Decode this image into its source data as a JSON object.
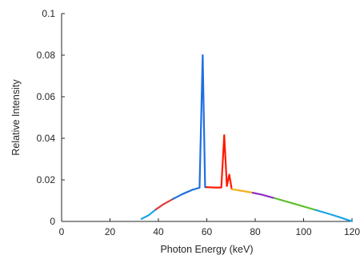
{
  "chart_data": {
    "type": "line",
    "title": "",
    "xlabel": "Photon Energy (keV)",
    "ylabel": "Relative Intensity",
    "xlim": [
      0,
      120
    ],
    "ylim": [
      0,
      0.1
    ],
    "xticks": [
      0,
      20,
      40,
      60,
      80,
      100,
      120
    ],
    "xtick_labels": [
      "0",
      "20",
      "40",
      "60",
      "80",
      "100",
      "120"
    ],
    "yticks": [
      0,
      0.02,
      0.04,
      0.06,
      0.08,
      0.1
    ],
    "ytick_labels": [
      "0",
      "0.02",
      "0.04",
      "0.06",
      "0.08",
      "0.1"
    ],
    "grid": false,
    "series": [
      {
        "color": "#1aa3e8",
        "points": [
          [
            33,
            0.0012
          ],
          [
            36,
            0.003
          ],
          [
            39,
            0.0058
          ]
        ]
      },
      {
        "color": "#e23a3a",
        "points": [
          [
            39,
            0.0058
          ],
          [
            42,
            0.0082
          ],
          [
            46,
            0.0108
          ]
        ]
      },
      {
        "color": "#1f6fe0",
        "points": [
          [
            46,
            0.0108
          ],
          [
            50,
            0.0132
          ],
          [
            54,
            0.0152
          ],
          [
            57,
            0.0162
          ],
          [
            58.3,
            0.08
          ],
          [
            59.3,
            0.0165
          ],
          [
            60,
            0.0165
          ]
        ]
      },
      {
        "color": "#ff1a00",
        "points": [
          [
            60,
            0.0165
          ],
          [
            63,
            0.0163
          ],
          [
            66,
            0.0163
          ],
          [
            67.2,
            0.0415
          ],
          [
            68.3,
            0.017
          ],
          [
            69.3,
            0.0225
          ],
          [
            70.3,
            0.0155
          ]
        ]
      },
      {
        "color": "#f5b01f",
        "points": [
          [
            70.3,
            0.0155
          ],
          [
            74,
            0.0148
          ],
          [
            79,
            0.0138
          ]
        ]
      },
      {
        "color": "#8f2fc6",
        "points": [
          [
            79,
            0.0138
          ],
          [
            83,
            0.0128
          ],
          [
            88,
            0.0112
          ]
        ]
      },
      {
        "color": "#5fbf2a",
        "points": [
          [
            88,
            0.0112
          ],
          [
            94,
            0.0092
          ],
          [
            100,
            0.0072
          ],
          [
            105,
            0.0055
          ]
        ]
      },
      {
        "color": "#1aa3e8",
        "points": [
          [
            105,
            0.0055
          ],
          [
            110,
            0.0038
          ],
          [
            115,
            0.002
          ],
          [
            118,
            0.0008
          ],
          [
            120,
            0.0001
          ]
        ]
      }
    ]
  }
}
